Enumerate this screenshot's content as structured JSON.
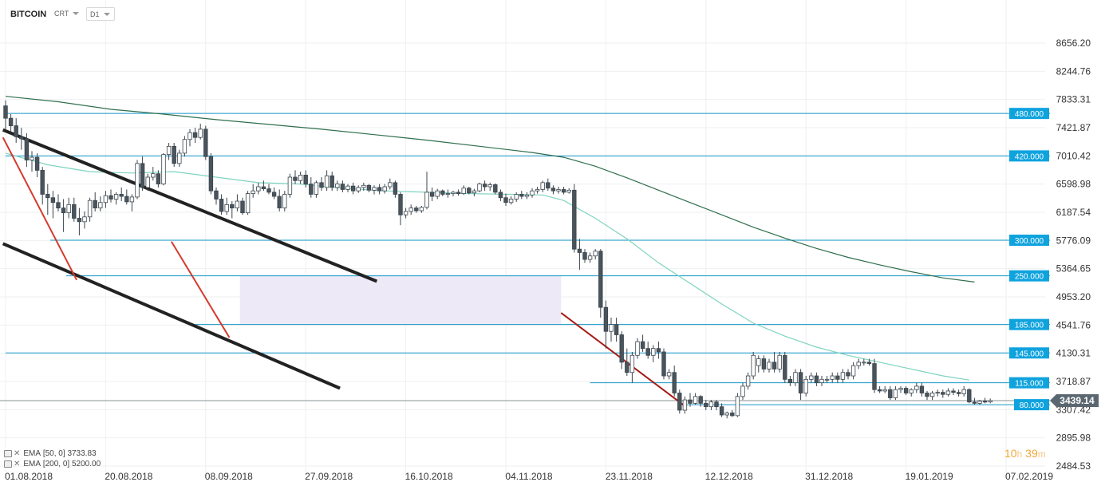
{
  "header": {
    "symbol": "BITCOIN",
    "chart_type": "CRT",
    "interval": "D1"
  },
  "indicators": [
    {
      "label": "EMA",
      "params": "[50, 0]",
      "value": "3733.83"
    },
    {
      "label": "EMA",
      "params": "[200, 0]",
      "value": "5200.00"
    }
  ],
  "countdown": {
    "h": "10",
    "h_unit": "h",
    "m": "39",
    "m_unit": "m"
  },
  "colors": {
    "bull": "#ffffff",
    "bear": "#4a545c",
    "wick": "#3a444c",
    "ema50": "#7ed3c0",
    "ema200": "#2f6e4c",
    "hline": "#1597c8",
    "label_bg": "#0fa3de",
    "trend_black": "#222222",
    "trend_red": "#d53a2e",
    "trend_darkred": "#a51b14",
    "zone": "#ede9f7",
    "price_tag": "#5b6770",
    "grid": "#eef0f2"
  },
  "chart_data": {
    "type": "candlestick",
    "y_ticks": [
      "8656.20",
      "8244.76",
      "7833.31",
      "7421.87",
      "7010.42",
      "6598.98",
      "6187.54",
      "5776.09",
      "5364.65",
      "4953.20",
      "4541.76",
      "4130.31",
      "3718.87",
      "3307.42",
      "2895.98",
      "2484.53"
    ],
    "ylim": [
      2484.53,
      8656.2
    ],
    "x_ticks": [
      {
        "d": 0,
        "label": "01.08.2018"
      },
      {
        "d": 19,
        "label": "20.08.2018"
      },
      {
        "d": 38,
        "label": "08.09.2018"
      },
      {
        "d": 57,
        "label": "27.09.2018"
      },
      {
        "d": 76,
        "label": "16.10.2018"
      },
      {
        "d": 95,
        "label": "04.11.2018"
      },
      {
        "d": 114,
        "label": "23.11.2018"
      },
      {
        "d": 133,
        "label": "12.12.2018"
      },
      {
        "d": 152,
        "label": "31.12.2018"
      },
      {
        "d": 171,
        "label": "19.01.2019"
      },
      {
        "d": 190,
        "label": "07.02.2019"
      }
    ],
    "current_price": "3439.14",
    "horizontal_levels": [
      {
        "label": "480.000",
        "value": 7630,
        "from_day": 0
      },
      {
        "label": "420.000",
        "value": 7010,
        "from_day": 0
      },
      {
        "label": "300.000",
        "value": 5780,
        "from_day": 8.5
      },
      {
        "label": "250.000",
        "value": 5260,
        "from_day": 11.5
      },
      {
        "label": "185.000",
        "value": 4550,
        "from_day": 36
      },
      {
        "label": "145.000",
        "value": 4135,
        "from_day": 0
      },
      {
        "label": "115.000",
        "value": 3700,
        "from_day": 111
      },
      {
        "label": "80.000",
        "value": 3380,
        "from_day": 128.5
      }
    ],
    "shaded_zone": {
      "from_day": 44.5,
      "to_day": 105.5,
      "y_top": 5260,
      "y_bottom": 4550
    },
    "trendlines": [
      {
        "style": "black",
        "points": [
          [
            -0.5,
            7390
          ],
          [
            70.5,
            5180
          ]
        ]
      },
      {
        "style": "black",
        "points": [
          [
            -0.5,
            5730
          ],
          [
            63.5,
            3620
          ]
        ]
      },
      {
        "style": "red",
        "points": [
          [
            -0.5,
            7280
          ],
          [
            13.5,
            5200
          ]
        ]
      },
      {
        "style": "red",
        "points": [
          [
            31.5,
            5760
          ],
          [
            42.5,
            4360
          ]
        ]
      },
      {
        "style": "darkred",
        "points": [
          [
            105.5,
            4720
          ],
          [
            129,
            3360
          ]
        ]
      }
    ],
    "ema50": [
      [
        0,
        7050
      ],
      [
        8,
        6880
      ],
      [
        16,
        6780
      ],
      [
        24,
        6760
      ],
      [
        32,
        6780
      ],
      [
        40,
        6700
      ],
      [
        48,
        6620
      ],
      [
        56,
        6600
      ],
      [
        64,
        6540
      ],
      [
        72,
        6500
      ],
      [
        80,
        6480
      ],
      [
        88,
        6460
      ],
      [
        96,
        6450
      ],
      [
        102,
        6440
      ],
      [
        106,
        6360
      ],
      [
        112,
        6100
      ],
      [
        118,
        5800
      ],
      [
        124,
        5450
      ],
      [
        130,
        5150
      ],
      [
        136,
        4850
      ],
      [
        142,
        4570
      ],
      [
        148,
        4380
      ],
      [
        154,
        4220
      ],
      [
        160,
        4100
      ],
      [
        166,
        4000
      ],
      [
        172,
        3900
      ],
      [
        178,
        3800
      ],
      [
        183,
        3740
      ]
    ],
    "ema200": [
      [
        0,
        7880
      ],
      [
        10,
        7800
      ],
      [
        20,
        7690
      ],
      [
        30,
        7620
      ],
      [
        40,
        7540
      ],
      [
        50,
        7470
      ],
      [
        60,
        7400
      ],
      [
        70,
        7320
      ],
      [
        80,
        7240
      ],
      [
        90,
        7150
      ],
      [
        100,
        7060
      ],
      [
        106,
        6990
      ],
      [
        112,
        6860
      ],
      [
        118,
        6690
      ],
      [
        124,
        6510
      ],
      [
        130,
        6330
      ],
      [
        136,
        6150
      ],
      [
        142,
        5970
      ],
      [
        148,
        5810
      ],
      [
        154,
        5660
      ],
      [
        160,
        5530
      ],
      [
        166,
        5420
      ],
      [
        172,
        5320
      ],
      [
        178,
        5230
      ],
      [
        184,
        5170
      ]
    ],
    "candles": [
      [
        7740,
        7820,
        7400,
        7560
      ],
      [
        7560,
        7620,
        7350,
        7450
      ],
      [
        7450,
        7560,
        7200,
        7290
      ],
      [
        7290,
        7420,
        7100,
        7260
      ],
      [
        7260,
        7340,
        6850,
        6950
      ],
      [
        6950,
        7080,
        6780,
        6990
      ],
      [
        6990,
        7050,
        6700,
        6800
      ],
      [
        6800,
        6850,
        6300,
        6450
      ],
      [
        6450,
        6600,
        6150,
        6400
      ],
      [
        6400,
        6500,
        6100,
        6330
      ],
      [
        6330,
        6450,
        6200,
        6250
      ],
      [
        6250,
        6380,
        5900,
        6180
      ],
      [
        6180,
        6400,
        6100,
        6300
      ],
      [
        6300,
        6400,
        6050,
        6100
      ],
      [
        6100,
        6250,
        5850,
        6050
      ],
      [
        6050,
        6200,
        5950,
        6120
      ],
      [
        6120,
        6400,
        6050,
        6360
      ],
      [
        6360,
        6480,
        6200,
        6250
      ],
      [
        6250,
        6420,
        6200,
        6330
      ],
      [
        6330,
        6500,
        6250,
        6430
      ],
      [
        6430,
        6520,
        6330,
        6380
      ],
      [
        6380,
        6480,
        6300,
        6450
      ],
      [
        6450,
        6550,
        6350,
        6420
      ],
      [
        6420,
        6520,
        6300,
        6340
      ],
      [
        6340,
        6450,
        6200,
        6410
      ],
      [
        6410,
        6950,
        6380,
        6900
      ],
      [
        6900,
        7000,
        6500,
        6550
      ],
      [
        6550,
        6750,
        6500,
        6700
      ],
      [
        6700,
        6850,
        6650,
        6750
      ],
      [
        6750,
        6800,
        6550,
        6600
      ],
      [
        6600,
        7050,
        6580,
        7030
      ],
      [
        7030,
        7200,
        6950,
        7150
      ],
      [
        7150,
        7200,
        6850,
        6900
      ],
      [
        6900,
        7100,
        6850,
        7050
      ],
      [
        7050,
        7300,
        7000,
        7250
      ],
      [
        7250,
        7400,
        7150,
        7350
      ],
      [
        7350,
        7420,
        7200,
        7280
      ],
      [
        7280,
        7480,
        7250,
        7400
      ],
      [
        7400,
        7450,
        6950,
        7000
      ],
      [
        7000,
        7050,
        6450,
        6500
      ],
      [
        6500,
        6550,
        6300,
        6380
      ],
      [
        6380,
        6450,
        6150,
        6200
      ],
      [
        6200,
        6400,
        6150,
        6300
      ],
      [
        6300,
        6350,
        6100,
        6250
      ],
      [
        6250,
        6450,
        6200,
        6350
      ],
      [
        6350,
        6400,
        6150,
        6180
      ],
      [
        6180,
        6500,
        6150,
        6460
      ],
      [
        6460,
        6600,
        6400,
        6500
      ],
      [
        6500,
        6620,
        6450,
        6560
      ],
      [
        6560,
        6650,
        6500,
        6530
      ],
      [
        6530,
        6600,
        6450,
        6480
      ],
      [
        6480,
        6550,
        6380,
        6420
      ],
      [
        6420,
        6520,
        6200,
        6250
      ],
      [
        6250,
        6500,
        6200,
        6450
      ],
      [
        6450,
        6750,
        6400,
        6700
      ],
      [
        6700,
        6800,
        6600,
        6650
      ],
      [
        6650,
        6780,
        6600,
        6730
      ],
      [
        6730,
        6800,
        6550,
        6600
      ],
      [
        6600,
        6700,
        6400,
        6450
      ],
      [
        6450,
        6650,
        6400,
        6620
      ],
      [
        6620,
        6700,
        6500,
        6550
      ],
      [
        6550,
        6800,
        6500,
        6720
      ],
      [
        6720,
        6780,
        6500,
        6550
      ],
      [
        6550,
        6650,
        6500,
        6600
      ],
      [
        6600,
        6650,
        6480,
        6520
      ],
      [
        6520,
        6600,
        6480,
        6570
      ],
      [
        6570,
        6620,
        6450,
        6500
      ],
      [
        6500,
        6580,
        6470,
        6550
      ],
      [
        6550,
        6620,
        6500,
        6580
      ],
      [
        6580,
        6600,
        6480,
        6510
      ],
      [
        6510,
        6580,
        6450,
        6550
      ],
      [
        6550,
        6600,
        6450,
        6500
      ],
      [
        6500,
        6600,
        6460,
        6560
      ],
      [
        6560,
        6680,
        6520,
        6620
      ],
      [
        6620,
        6650,
        6400,
        6450
      ],
      [
        6450,
        6480,
        6000,
        6150
      ],
      [
        6150,
        6250,
        6100,
        6200
      ],
      [
        6200,
        6300,
        6150,
        6250
      ],
      [
        6250,
        6280,
        6180,
        6210
      ],
      [
        6210,
        6280,
        6180,
        6260
      ],
      [
        6260,
        6780,
        6230,
        6480
      ],
      [
        6480,
        6550,
        6350,
        6420
      ],
      [
        6420,
        6530,
        6380,
        6500
      ],
      [
        6500,
        6520,
        6420,
        6450
      ],
      [
        6450,
        6520,
        6400,
        6460
      ],
      [
        6460,
        6500,
        6420,
        6480
      ],
      [
        6480,
        6520,
        6430,
        6460
      ],
      [
        6460,
        6580,
        6440,
        6540
      ],
      [
        6540,
        6560,
        6450,
        6470
      ],
      [
        6470,
        6530,
        6420,
        6500
      ],
      [
        6500,
        6620,
        6480,
        6600
      ],
      [
        6600,
        6650,
        6500,
        6560
      ],
      [
        6560,
        6620,
        6500,
        6590
      ],
      [
        6590,
        6610,
        6450,
        6480
      ],
      [
        6480,
        6520,
        6350,
        6400
      ],
      [
        6400,
        6460,
        6280,
        6330
      ],
      [
        6330,
        6420,
        6300,
        6380
      ],
      [
        6380,
        6480,
        6340,
        6450
      ],
      [
        6450,
        6500,
        6380,
        6420
      ],
      [
        6420,
        6480,
        6380,
        6440
      ],
      [
        6440,
        6540,
        6400,
        6500
      ],
      [
        6500,
        6560,
        6460,
        6520
      ],
      [
        6520,
        6650,
        6480,
        6620
      ],
      [
        6620,
        6680,
        6500,
        6540
      ],
      [
        6540,
        6580,
        6450,
        6500
      ],
      [
        6500,
        6560,
        6460,
        6520
      ],
      [
        6520,
        6560,
        6450,
        6480
      ],
      [
        6480,
        6540,
        6460,
        6510
      ],
      [
        6510,
        6600,
        5600,
        5650
      ],
      [
        5650,
        5800,
        5350,
        5600
      ],
      [
        5600,
        5650,
        5450,
        5500
      ],
      [
        5500,
        5600,
        5450,
        5550
      ],
      [
        5550,
        5650,
        5500,
        5620
      ],
      [
        5620,
        5650,
        4650,
        4800
      ],
      [
        4800,
        4900,
        4200,
        4450
      ],
      [
        4450,
        4650,
        4300,
        4550
      ],
      [
        4550,
        4650,
        4300,
        4400
      ],
      [
        4400,
        4450,
        3900,
        4000
      ],
      [
        4000,
        4200,
        3800,
        3850
      ],
      [
        3850,
        4150,
        3700,
        4100
      ],
      [
        4100,
        4350,
        4050,
        4300
      ],
      [
        4300,
        4400,
        4150,
        4200
      ],
      [
        4200,
        4300,
        4050,
        4100
      ],
      [
        4100,
        4250,
        4000,
        4200
      ],
      [
        4200,
        4300,
        4050,
        4150
      ],
      [
        4150,
        4200,
        3750,
        3800
      ],
      [
        3800,
        3900,
        3750,
        3850
      ],
      [
        3850,
        3950,
        3500,
        3550
      ],
      [
        3550,
        3600,
        3250,
        3300
      ],
      [
        3300,
        3500,
        3250,
        3450
      ],
      [
        3450,
        3550,
        3350,
        3400
      ],
      [
        3400,
        3550,
        3380,
        3500
      ],
      [
        3500,
        3520,
        3350,
        3400
      ],
      [
        3400,
        3450,
        3300,
        3350
      ],
      [
        3350,
        3450,
        3300,
        3420
      ],
      [
        3420,
        3450,
        3300,
        3350
      ],
      [
        3350,
        3400,
        3200,
        3230
      ],
      [
        3230,
        3280,
        3180,
        3260
      ],
      [
        3260,
        3300,
        3200,
        3220
      ],
      [
        3220,
        3550,
        3200,
        3500
      ],
      [
        3500,
        3700,
        3450,
        3650
      ],
      [
        3650,
        3850,
        3600,
        3800
      ],
      [
        3800,
        4150,
        3750,
        4100
      ],
      [
        3950,
        4100,
        3850,
        4050
      ],
      [
        4050,
        4100,
        3850,
        3900
      ],
      [
        3900,
        4050,
        3850,
        4000
      ],
      [
        4000,
        4150,
        3850,
        3900
      ],
      [
        3900,
        4150,
        3850,
        4100
      ],
      [
        4100,
        4150,
        3700,
        3750
      ],
      [
        3750,
        3800,
        3650,
        3700
      ],
      [
        3700,
        3900,
        3650,
        3850
      ],
      [
        3850,
        3900,
        3450,
        3550
      ],
      [
        3550,
        3800,
        3500,
        3750
      ],
      [
        3750,
        3850,
        3700,
        3800
      ],
      [
        3800,
        3850,
        3650,
        3700
      ],
      [
        3700,
        3800,
        3650,
        3750
      ],
      [
        3750,
        3800,
        3700,
        3750
      ],
      [
        3750,
        3850,
        3700,
        3800
      ],
      [
        3800,
        3850,
        3700,
        3750
      ],
      [
        3750,
        3900,
        3700,
        3850
      ],
      [
        3850,
        3900,
        3750,
        3800
      ],
      [
        3800,
        4000,
        3750,
        3950
      ],
      [
        3950,
        4050,
        3900,
        4000
      ],
      [
        4000,
        4050,
        3950,
        4000
      ],
      [
        4000,
        4050,
        3950,
        3980
      ],
      [
        3980,
        4050,
        3550,
        3600
      ],
      [
        3600,
        3650,
        3550,
        3580
      ],
      [
        3580,
        3650,
        3550,
        3600
      ],
      [
        3600,
        3650,
        3450,
        3480
      ],
      [
        3480,
        3650,
        3450,
        3600
      ],
      [
        3600,
        3650,
        3550,
        3620
      ],
      [
        3620,
        3650,
        3520,
        3550
      ],
      [
        3550,
        3620,
        3500,
        3600
      ],
      [
        3600,
        3700,
        3550,
        3650
      ],
      [
        3650,
        3700,
        3500,
        3550
      ],
      [
        3550,
        3580,
        3450,
        3500
      ],
      [
        3500,
        3580,
        3450,
        3550
      ],
      [
        3550,
        3600,
        3500,
        3560
      ],
      [
        3560,
        3600,
        3480,
        3530
      ],
      [
        3530,
        3620,
        3500,
        3580
      ],
      [
        3580,
        3620,
        3520,
        3560
      ],
      [
        3560,
        3600,
        3500,
        3540
      ],
      [
        3540,
        3650,
        3500,
        3600
      ],
      [
        3600,
        3620,
        3400,
        3420
      ],
      [
        3420,
        3480,
        3380,
        3400
      ],
      [
        3400,
        3450,
        3380,
        3430
      ],
      [
        3430,
        3480,
        3400,
        3420
      ],
      [
        3420,
        3470,
        3400,
        3439
      ]
    ]
  }
}
